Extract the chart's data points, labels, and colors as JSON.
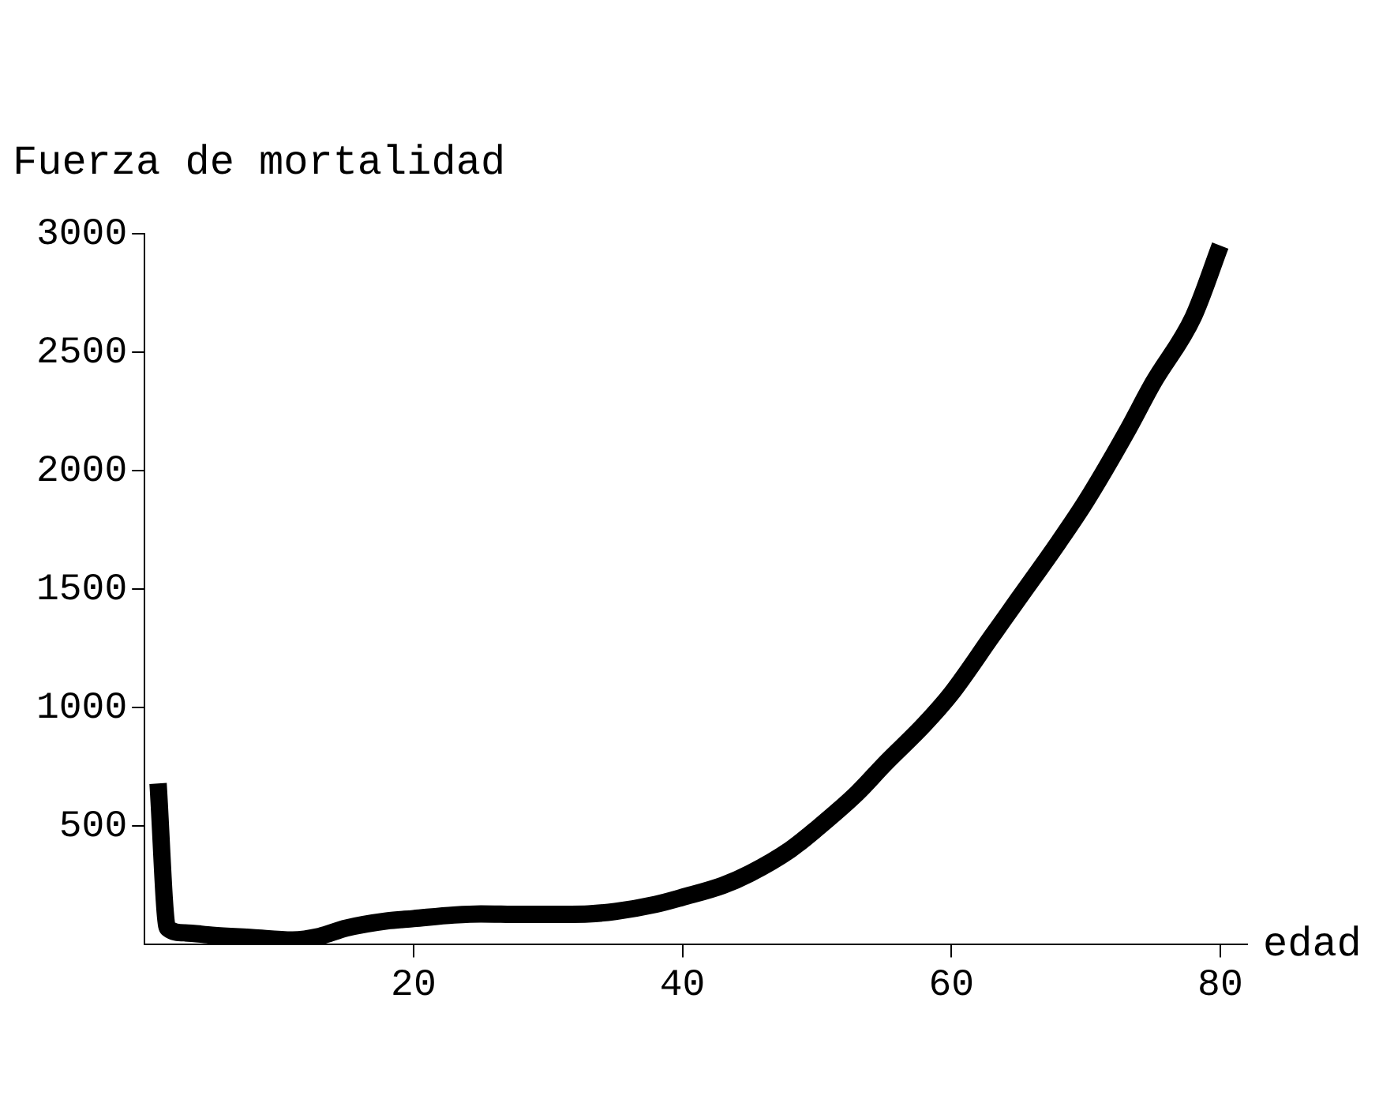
{
  "chart_data": {
    "type": "line",
    "xlabel": "edad",
    "ylabel": "Fuerza de mortalidad",
    "x": [
      1,
      1.7,
      3,
      5,
      8,
      11,
      13,
      15,
      18,
      20,
      23,
      25,
      28,
      30,
      33,
      35,
      38,
      40,
      43,
      45,
      48,
      50,
      53,
      55,
      58,
      60,
      63,
      65,
      68,
      70,
      73,
      75,
      78,
      80
    ],
    "series": [
      {
        "color": "#000000",
        "values": [
          680,
          70,
          50,
          40,
          30,
          20,
          35,
          70,
          100,
          110,
          125,
          130,
          128,
          128,
          130,
          140,
          170,
          200,
          250,
          300,
          400,
          490,
          640,
          760,
          930,
          1060,
          1300,
          1460,
          1700,
          1870,
          2160,
          2370,
          2650,
          2950
        ]
      }
    ],
    "xlim": [
      0,
      82
    ],
    "ylim": [
      0,
      3000
    ],
    "xticks": [
      20,
      40,
      60,
      80
    ],
    "yticks": [
      500,
      1000,
      1500,
      2000,
      2500,
      3000
    ],
    "grid": false,
    "legend": false,
    "marker": "none",
    "line_style": "solid"
  }
}
